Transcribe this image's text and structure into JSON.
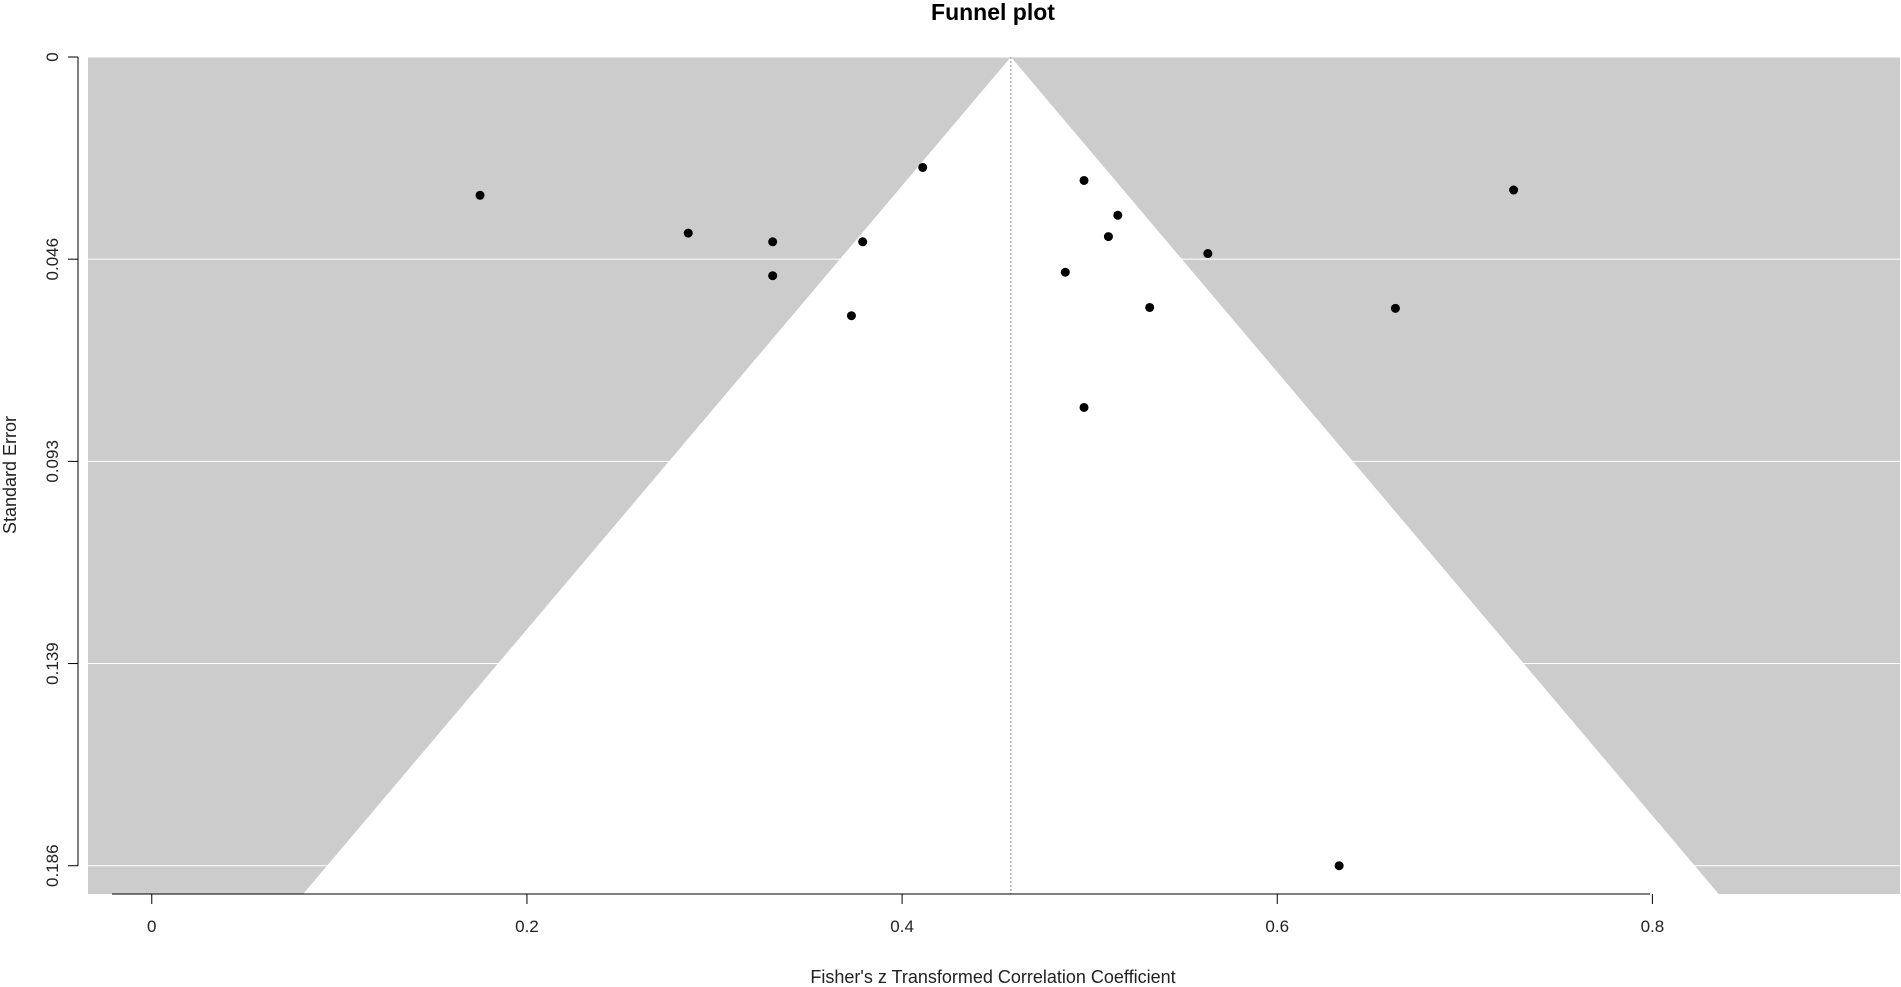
{
  "chart_data": {
    "type": "scatter",
    "title": "Funnel plot",
    "xlabel": "Fisher's z Transformed Correlation Coefficient",
    "ylabel": "Standard Error",
    "xlim": [
      -0.034,
      0.932
    ],
    "ylim": [
      0,
      0.1925
    ],
    "y_reversed": true,
    "x_ticks": [
      0,
      0.2,
      0.4,
      0.6,
      0.8
    ],
    "x_tick_labels": [
      "0",
      "0.2",
      "0.4",
      "0.6",
      "0.8"
    ],
    "y_ticks": [
      0,
      0.0465,
      0.093,
      0.1395,
      0.186
    ],
    "y_tick_labels": [
      "0",
      "0.046",
      "0.093",
      "0.139",
      "0.186"
    ],
    "grid": "horizontal",
    "background_color": "#cccccc",
    "funnel_color": "#ffffff",
    "point_color": "#000000",
    "summary_estimate": 0.458,
    "funnel_z": 1.96,
    "points": [
      {
        "x": 0.175,
        "y": 0.0318
      },
      {
        "x": 0.286,
        "y": 0.0405
      },
      {
        "x": 0.331,
        "y": 0.0425
      },
      {
        "x": 0.331,
        "y": 0.0503
      },
      {
        "x": 0.379,
        "y": 0.0425
      },
      {
        "x": 0.373,
        "y": 0.0595
      },
      {
        "x": 0.411,
        "y": 0.0254
      },
      {
        "x": 0.497,
        "y": 0.0284
      },
      {
        "x": 0.515,
        "y": 0.0364
      },
      {
        "x": 0.51,
        "y": 0.0413
      },
      {
        "x": 0.487,
        "y": 0.0495
      },
      {
        "x": 0.532,
        "y": 0.0576
      },
      {
        "x": 0.563,
        "y": 0.0452
      },
      {
        "x": 0.497,
        "y": 0.0806
      },
      {
        "x": 0.726,
        "y": 0.0306
      },
      {
        "x": 0.663,
        "y": 0.0578
      },
      {
        "x": 0.633,
        "y": 0.186
      }
    ]
  }
}
